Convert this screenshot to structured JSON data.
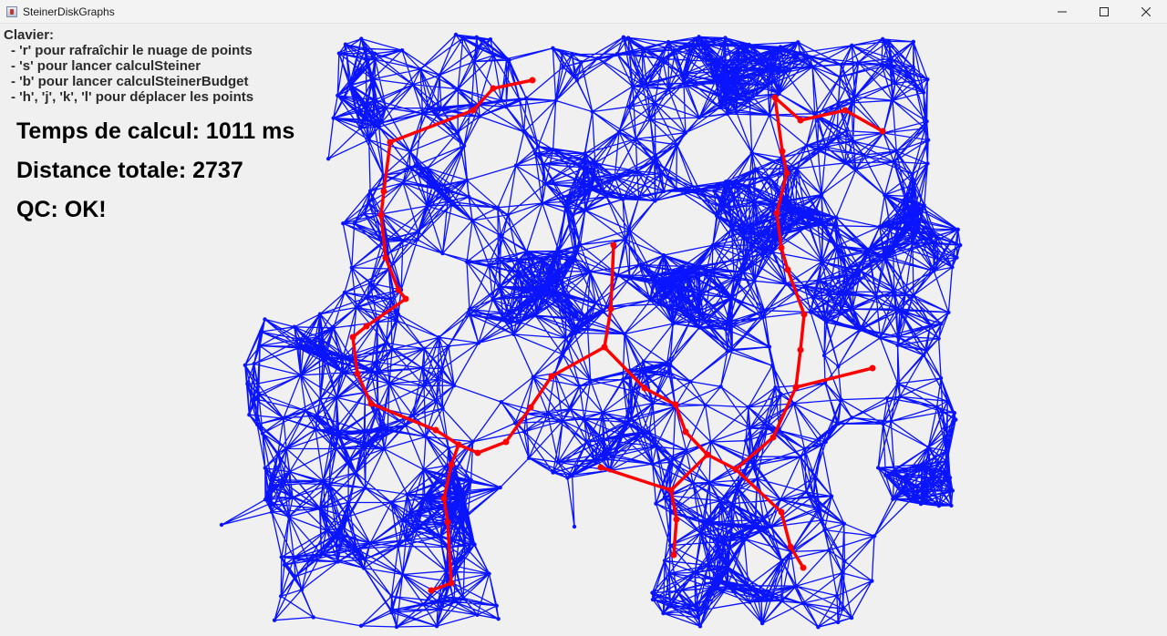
{
  "window": {
    "title": "SteinerDiskGraphs",
    "icon": "java-cup-icon",
    "controls": [
      "minimize-icon",
      "maximize-icon",
      "close-icon"
    ]
  },
  "help": {
    "heading": "Clavier:",
    "items": [
      "- 'r' pour rafraîchir le nuage de points",
      "- 's' pour lancer calculSteiner",
      "- 'b' pour lancer calculSteinerBudget",
      "- 'h', 'j', 'k', 'l' pour déplacer les points"
    ]
  },
  "stats": {
    "time": "Temps de calcul: 1011 ms",
    "distance": "Distance totale: 2737",
    "qc": "QC: OK!"
  },
  "colors": {
    "graph_edges": "#0a14ff",
    "steiner_tree": "#ff0000",
    "background": "#f0f0f0"
  }
}
